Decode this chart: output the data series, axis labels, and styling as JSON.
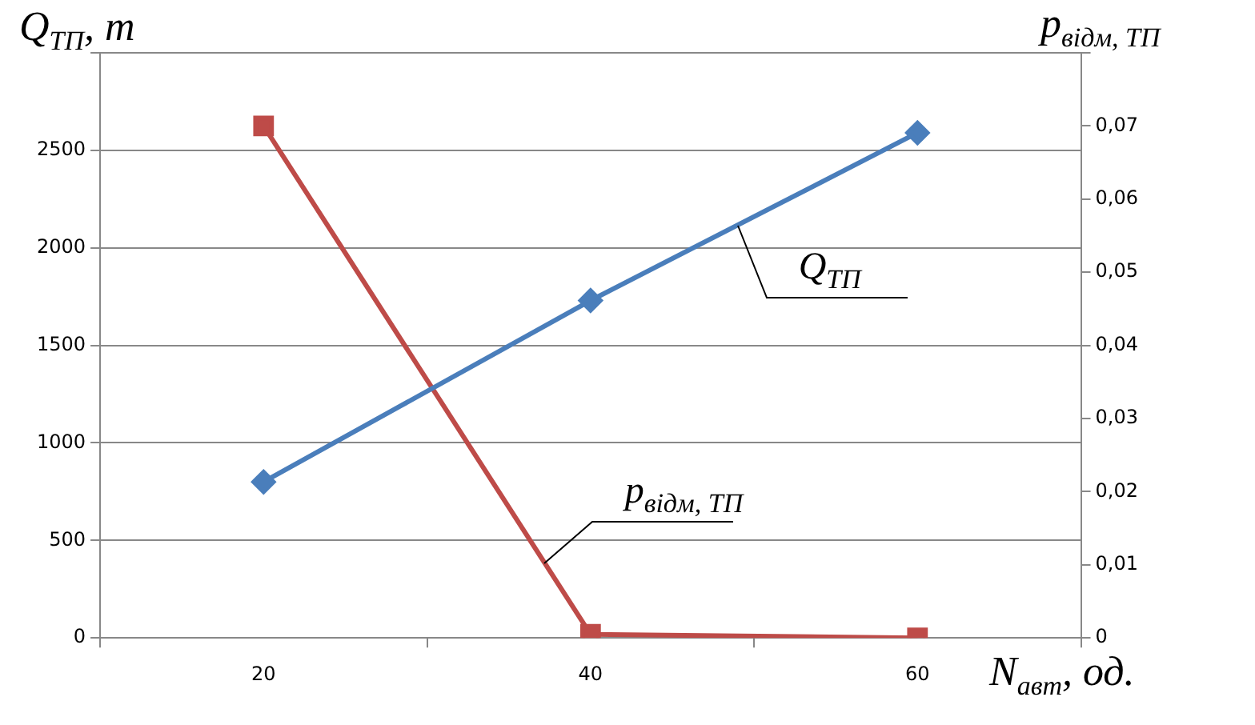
{
  "chart_data": {
    "type": "line",
    "xlabel": "N$_{авт}$, од.",
    "ylabel": "Q$_{ТП}$, т",
    "y2label": "p$_{відм, ТП}$",
    "categories": [
      "20",
      "40",
      "60"
    ],
    "series": [
      {
        "name": "Q$_{ТП}$",
        "color": "#4a7ebb",
        "values": [
          800,
          1730,
          2590
        ],
        "marker": "diamond"
      },
      {
        "name": "p$_{відм, ТП}$",
        "color": "#be4b48",
        "values": [
          0.07,
          0.0005,
          0
        ],
        "marker": "square",
        "axis": "y2"
      }
    ],
    "ylim": [
      0,
      3000
    ],
    "yticks": [
      0,
      500,
      1000,
      1500,
      2000,
      2500,
      {
        "value": 3000,
        "label": null
      }
    ],
    "y2lim": [
      0,
      0.08
    ],
    "y2ticks": [
      {
        "value": 0,
        "label": "0"
      },
      {
        "value": 0.01,
        "label": "0,01"
      },
      {
        "value": 0.02,
        "label": "0,02"
      },
      {
        "value": 0.03,
        "label": "0,03"
      },
      {
        "value": 0.04,
        "label": "0,04"
      },
      {
        "value": 0.05,
        "label": "0,05"
      },
      {
        "value": 0.06,
        "label": "0,06"
      },
      {
        "value": 0.07,
        "label": "0,07"
      },
      {
        "value": 0.08,
        "label": null
      }
    ],
    "grid": "y",
    "legend": false,
    "line_style": "solid"
  }
}
